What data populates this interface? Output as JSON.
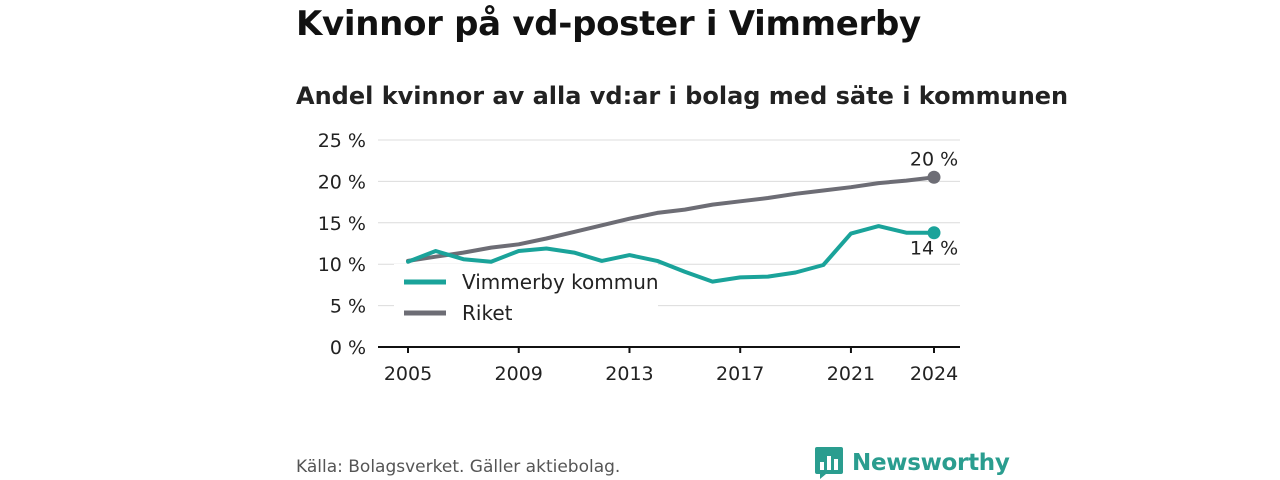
{
  "header": {
    "title": "Kvinnor på vd-poster i Vimmerby",
    "subtitle": "Andel kvinnor av alla vd:ar i bolag med säte i kommunen"
  },
  "footer": {
    "source": "Källa: Bolagsverket. Gäller aktiebolag.",
    "brand": "Newsworthy",
    "brand_icon": "bar-chart-speech-bubble-icon"
  },
  "chart_data": {
    "type": "line",
    "title": "Kvinnor på vd-poster i Vimmerby",
    "subtitle": "Andel kvinnor av alla vd:ar i bolag med säte i kommunen",
    "x": [
      2005,
      2006,
      2007,
      2008,
      2009,
      2010,
      2011,
      2012,
      2013,
      2014,
      2015,
      2016,
      2017,
      2018,
      2019,
      2020,
      2021,
      2022,
      2023,
      2024
    ],
    "x_ticks": [
      2005,
      2009,
      2013,
      2017,
      2021,
      2024
    ],
    "y_ticks": [
      0,
      5,
      10,
      15,
      20,
      25
    ],
    "y_tick_labels": [
      "0 %",
      "5 %",
      "10 %",
      "15 %",
      "20 %",
      "25 %"
    ],
    "xlim": [
      2005,
      2024
    ],
    "ylim": [
      0,
      25
    ],
    "grid": true,
    "legend_position": "bottom-left",
    "series": [
      {
        "name": "Vimmerby kommun",
        "color": "#1aa39a",
        "values": [
          10.3,
          11.6,
          10.6,
          10.3,
          11.6,
          11.9,
          11.4,
          10.4,
          11.1,
          10.4,
          9.1,
          7.9,
          8.4,
          8.5,
          9.0,
          9.9,
          13.7,
          14.6,
          13.8,
          13.8
        ],
        "end_label": "14 %"
      },
      {
        "name": "Riket",
        "color": "#6d6d75",
        "values": [
          10.4,
          10.9,
          11.4,
          12.0,
          12.4,
          13.1,
          13.9,
          14.7,
          15.5,
          16.2,
          16.6,
          17.2,
          17.6,
          18.0,
          18.5,
          18.9,
          19.3,
          19.8,
          20.1,
          20.5
        ],
        "end_label": "20 %"
      }
    ]
  }
}
